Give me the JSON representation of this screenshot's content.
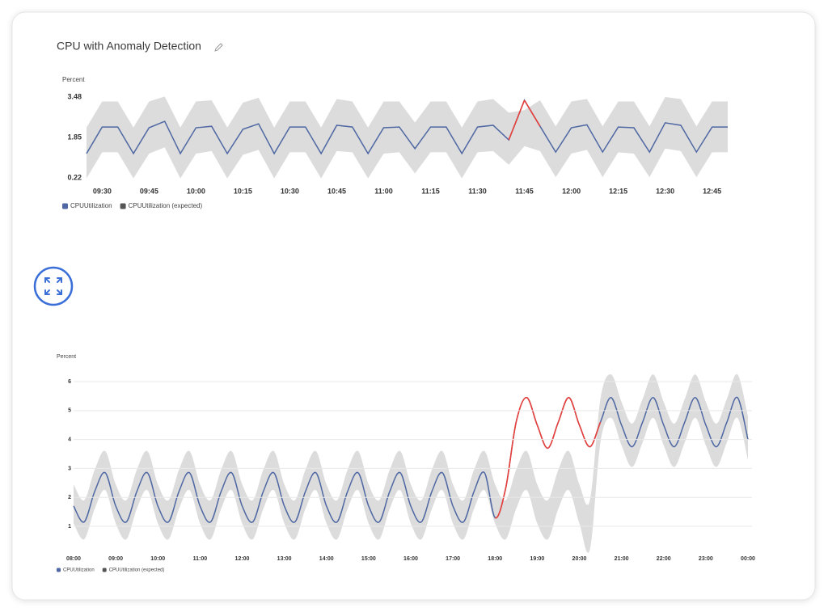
{
  "card": {
    "title": "CPU with Anomaly Detection"
  },
  "chart_data": [
    {
      "type": "line",
      "y_label": "Percent",
      "smooth": false,
      "grid": false,
      "ylim": [
        0.22,
        3.48
      ],
      "yticks": [
        0.22,
        1.85,
        3.48
      ],
      "xticks": [
        "09:30",
        "09:45",
        "10:00",
        "10:15",
        "10:30",
        "10:45",
        "11:00",
        "11:15",
        "11:30",
        "11:45",
        "12:00",
        "12:15",
        "12:30",
        "12:45"
      ],
      "x": [
        "09:25",
        "09:30",
        "09:35",
        "09:40",
        "09:45",
        "09:50",
        "09:55",
        "10:00",
        "10:05",
        "10:10",
        "10:15",
        "10:20",
        "10:25",
        "10:30",
        "10:35",
        "10:40",
        "10:45",
        "10:50",
        "10:55",
        "11:00",
        "11:05",
        "11:10",
        "11:15",
        "11:20",
        "11:25",
        "11:30",
        "11:35",
        "11:40",
        "11:45",
        "11:50",
        "11:55",
        "12:00",
        "12:05",
        "12:10",
        "12:15",
        "12:20",
        "12:25",
        "12:30",
        "12:35",
        "12:40",
        "12:45",
        "12:50"
      ],
      "anomaly_color": "#e8413c",
      "series": [
        {
          "name": "CPUUtilization",
          "color": "#4f68a3",
          "values": [
            1.2,
            2.27,
            2.27,
            1.2,
            2.24,
            2.5,
            1.2,
            2.24,
            2.3,
            1.2,
            2.18,
            2.4,
            1.2,
            2.27,
            2.27,
            1.2,
            2.34,
            2.27,
            1.2,
            2.24,
            2.27,
            1.4,
            2.27,
            2.27,
            1.2,
            2.27,
            2.34,
            1.75,
            3.35,
            2.3,
            1.26,
            2.24,
            2.36,
            1.26,
            2.27,
            2.24,
            1.26,
            2.44,
            2.34,
            1.26,
            2.27,
            2.27
          ]
        },
        {
          "name": "CPUUtilization (expected)",
          "color": "#555555",
          "band_color": "#dcdcdc",
          "upper": [
            2.25,
            3.3,
            3.3,
            2.25,
            3.3,
            3.5,
            2.25,
            3.3,
            3.35,
            2.25,
            3.25,
            3.45,
            2.25,
            3.3,
            3.3,
            2.25,
            3.4,
            3.3,
            2.25,
            3.3,
            3.3,
            2.45,
            3.3,
            3.3,
            2.25,
            3.3,
            3.4,
            2.85,
            2.95,
            3.35,
            2.3,
            3.3,
            3.4,
            2.3,
            3.3,
            3.3,
            2.3,
            3.48,
            3.4,
            2.3,
            3.3,
            3.3
          ],
          "lower": [
            0.2,
            1.25,
            1.25,
            0.2,
            1.2,
            1.45,
            0.2,
            1.2,
            1.3,
            0.2,
            1.15,
            1.35,
            0.2,
            1.25,
            1.25,
            0.2,
            1.3,
            1.25,
            0.2,
            1.2,
            1.25,
            0.4,
            1.25,
            1.25,
            0.2,
            1.25,
            1.3,
            0.75,
            1.5,
            1.3,
            0.25,
            1.2,
            1.35,
            0.25,
            1.25,
            1.2,
            0.25,
            1.4,
            1.3,
            0.25,
            1.25,
            1.25
          ]
        }
      ]
    },
    {
      "type": "line",
      "y_label": "Percent",
      "smooth": true,
      "grid": true,
      "ylim": [
        0,
        6.3
      ],
      "yticks": [
        1,
        2,
        3,
        4,
        5,
        6
      ],
      "xticks": [
        "08:00",
        "09:00",
        "10:00",
        "11:00",
        "12:00",
        "13:00",
        "14:00",
        "15:00",
        "16:00",
        "17:00",
        "18:00",
        "19:00",
        "20:00",
        "21:00",
        "22:00",
        "23:00",
        "00:00"
      ],
      "x": [
        "08:00",
        "08:15",
        "08:30",
        "08:45",
        "09:00",
        "09:15",
        "09:30",
        "09:45",
        "10:00",
        "10:15",
        "10:30",
        "10:45",
        "11:00",
        "11:15",
        "11:30",
        "11:45",
        "12:00",
        "12:15",
        "12:30",
        "12:45",
        "13:00",
        "13:15",
        "13:30",
        "13:45",
        "14:00",
        "14:15",
        "14:30",
        "14:45",
        "15:00",
        "15:15",
        "15:30",
        "15:45",
        "16:00",
        "16:15",
        "16:30",
        "16:45",
        "17:00",
        "17:15",
        "17:30",
        "17:45",
        "18:00",
        "18:15",
        "18:30",
        "18:45",
        "19:00",
        "19:15",
        "19:30",
        "19:45",
        "20:00",
        "20:15",
        "20:30",
        "20:45",
        "21:00",
        "21:15",
        "21:30",
        "21:45",
        "22:00",
        "22:15",
        "22:30",
        "22:45",
        "23:00",
        "23:15",
        "23:30",
        "23:45",
        "00:00"
      ],
      "anomaly_color": "#e8413c",
      "series": [
        {
          "name": "CPUUtilization",
          "color": "#4f68a3",
          "values": [
            1.7,
            1.15,
            2.2,
            2.85,
            1.7,
            1.15,
            2.2,
            2.85,
            1.7,
            1.15,
            2.2,
            2.85,
            1.7,
            1.15,
            2.2,
            2.85,
            1.7,
            1.15,
            2.2,
            2.85,
            1.7,
            1.15,
            2.2,
            2.85,
            1.7,
            1.15,
            2.2,
            2.85,
            1.7,
            1.15,
            2.2,
            2.85,
            1.7,
            1.15,
            2.2,
            2.85,
            1.7,
            1.15,
            2.2,
            2.85,
            1.3,
            2.3,
            4.6,
            5.45,
            4.5,
            3.7,
            4.6,
            5.45,
            4.5,
            3.75,
            4.6,
            5.45,
            4.5,
            3.75,
            4.6,
            5.45,
            4.5,
            3.75,
            4.6,
            5.45,
            4.5,
            3.75,
            4.6,
            5.45,
            4.0
          ]
        },
        {
          "name": "CPUUtilization (expected)",
          "color": "#555555",
          "band_color": "#dcdcdc",
          "upper": [
            2.45,
            1.9,
            2.95,
            3.6,
            2.45,
            1.9,
            2.95,
            3.6,
            2.45,
            1.9,
            2.95,
            3.6,
            2.45,
            1.9,
            2.95,
            3.6,
            2.45,
            1.9,
            2.95,
            3.6,
            2.45,
            1.9,
            2.95,
            3.6,
            2.45,
            1.9,
            2.95,
            3.6,
            2.45,
            1.9,
            2.95,
            3.6,
            2.45,
            1.9,
            2.95,
            3.6,
            2.45,
            1.9,
            2.95,
            3.6,
            2.45,
            1.9,
            2.95,
            3.6,
            2.45,
            1.9,
            2.95,
            3.6,
            2.45,
            1.9,
            5.4,
            6.25,
            5.3,
            4.55,
            5.4,
            6.25,
            5.3,
            4.55,
            5.4,
            6.25,
            5.3,
            4.55,
            5.4,
            6.25,
            4.8
          ],
          "lower": [
            1.1,
            0.55,
            1.6,
            2.25,
            1.1,
            0.55,
            1.6,
            2.25,
            1.1,
            0.55,
            1.6,
            2.25,
            1.1,
            0.55,
            1.6,
            2.25,
            1.1,
            0.55,
            1.6,
            2.25,
            1.1,
            0.55,
            1.6,
            2.25,
            1.1,
            0.55,
            1.6,
            2.25,
            1.1,
            0.55,
            1.6,
            2.25,
            1.1,
            0.55,
            1.6,
            2.25,
            1.1,
            0.55,
            1.6,
            2.25,
            1.1,
            0.55,
            1.6,
            2.25,
            1.1,
            0.55,
            1.6,
            2.25,
            1.1,
            0.2,
            3.9,
            4.75,
            3.8,
            3.05,
            3.9,
            4.75,
            3.8,
            3.05,
            3.9,
            4.75,
            3.8,
            3.05,
            3.9,
            4.75,
            3.3
          ]
        }
      ]
    }
  ]
}
